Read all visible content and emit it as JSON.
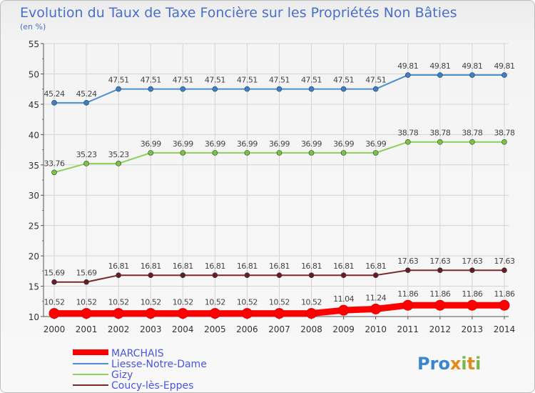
{
  "chart_data": {
    "type": "line",
    "title": "Evolution du Taux de Taxe Foncière sur les Propriétés Non Bâties",
    "unit_label": "(en %)",
    "xlabel": "",
    "ylabel": "(en %)",
    "ylim": [
      10,
      55
    ],
    "yticks": [
      10,
      15,
      20,
      25,
      30,
      35,
      40,
      45,
      50,
      55
    ],
    "grid": true,
    "legend_position": "bottom-left",
    "categories": [
      "2000",
      "2001",
      "2002",
      "2003",
      "2004",
      "2005",
      "2006",
      "2007",
      "2008",
      "2009",
      "2010",
      "2011",
      "2012",
      "2013",
      "2014"
    ],
    "series": [
      {
        "name": "MARCHAIS",
        "color": "#ff0000",
        "emphasis": "thick",
        "values": [
          10.52,
          10.52,
          10.52,
          10.52,
          10.52,
          10.52,
          10.52,
          10.52,
          10.52,
          11.04,
          11.24,
          11.86,
          11.86,
          11.86,
          11.86
        ],
        "labels": [
          "10.52",
          "10.52",
          "10.52",
          "10.52",
          "10.52",
          "10.52",
          "10.52",
          "10.52",
          "10.52",
          "11.04",
          "11.24",
          "11.86",
          "11.86",
          "11.86",
          "11.86"
        ]
      },
      {
        "name": "Liesse-Notre-Dame",
        "color": "#4f8fcf",
        "marker_color": "#3f7fc0",
        "values": [
          45.24,
          45.24,
          47.51,
          47.51,
          47.51,
          47.51,
          47.51,
          47.51,
          47.51,
          47.51,
          47.51,
          49.81,
          49.81,
          49.81,
          49.81
        ],
        "labels": [
          "45.24",
          "45.24",
          "47.51",
          "47.51",
          "47.51",
          "47.51",
          "47.51",
          "47.51",
          "47.51",
          "47.51",
          "47.51",
          "49.81",
          "49.81",
          "49.81",
          "49.81"
        ]
      },
      {
        "name": "Gizy",
        "color": "#8ed05a",
        "marker_color": "#7cc43a",
        "values": [
          33.76,
          35.23,
          35.23,
          36.99,
          36.99,
          36.99,
          36.99,
          36.99,
          36.99,
          36.99,
          36.99,
          38.78,
          38.78,
          38.78,
          38.78
        ],
        "labels": [
          "33.76",
          "35.23",
          "35.23",
          "36.99",
          "36.99",
          "36.99",
          "36.99",
          "36.99",
          "36.99",
          "36.99",
          "36.99",
          "38.78",
          "38.78",
          "38.78",
          "38.78"
        ]
      },
      {
        "name": "Coucy-lès-Eppes",
        "color": "#7a2a2a",
        "marker_color": "#6a1c1c",
        "values": [
          15.69,
          15.69,
          16.81,
          16.81,
          16.81,
          16.81,
          16.81,
          16.81,
          16.81,
          16.81,
          16.81,
          17.63,
          17.63,
          17.63,
          17.63
        ],
        "labels": [
          "15.69",
          "15.69",
          "16.81",
          "16.81",
          "16.81",
          "16.81",
          "16.81",
          "16.81",
          "16.81",
          "16.81",
          "16.81",
          "17.63",
          "17.63",
          "17.63",
          "17.63"
        ]
      }
    ]
  },
  "legend": {
    "items": [
      "MARCHAIS",
      "Liesse-Notre-Dame",
      "Gizy",
      "Coucy-lès-Eppes"
    ]
  },
  "logo": {
    "text": "Proxiti"
  }
}
